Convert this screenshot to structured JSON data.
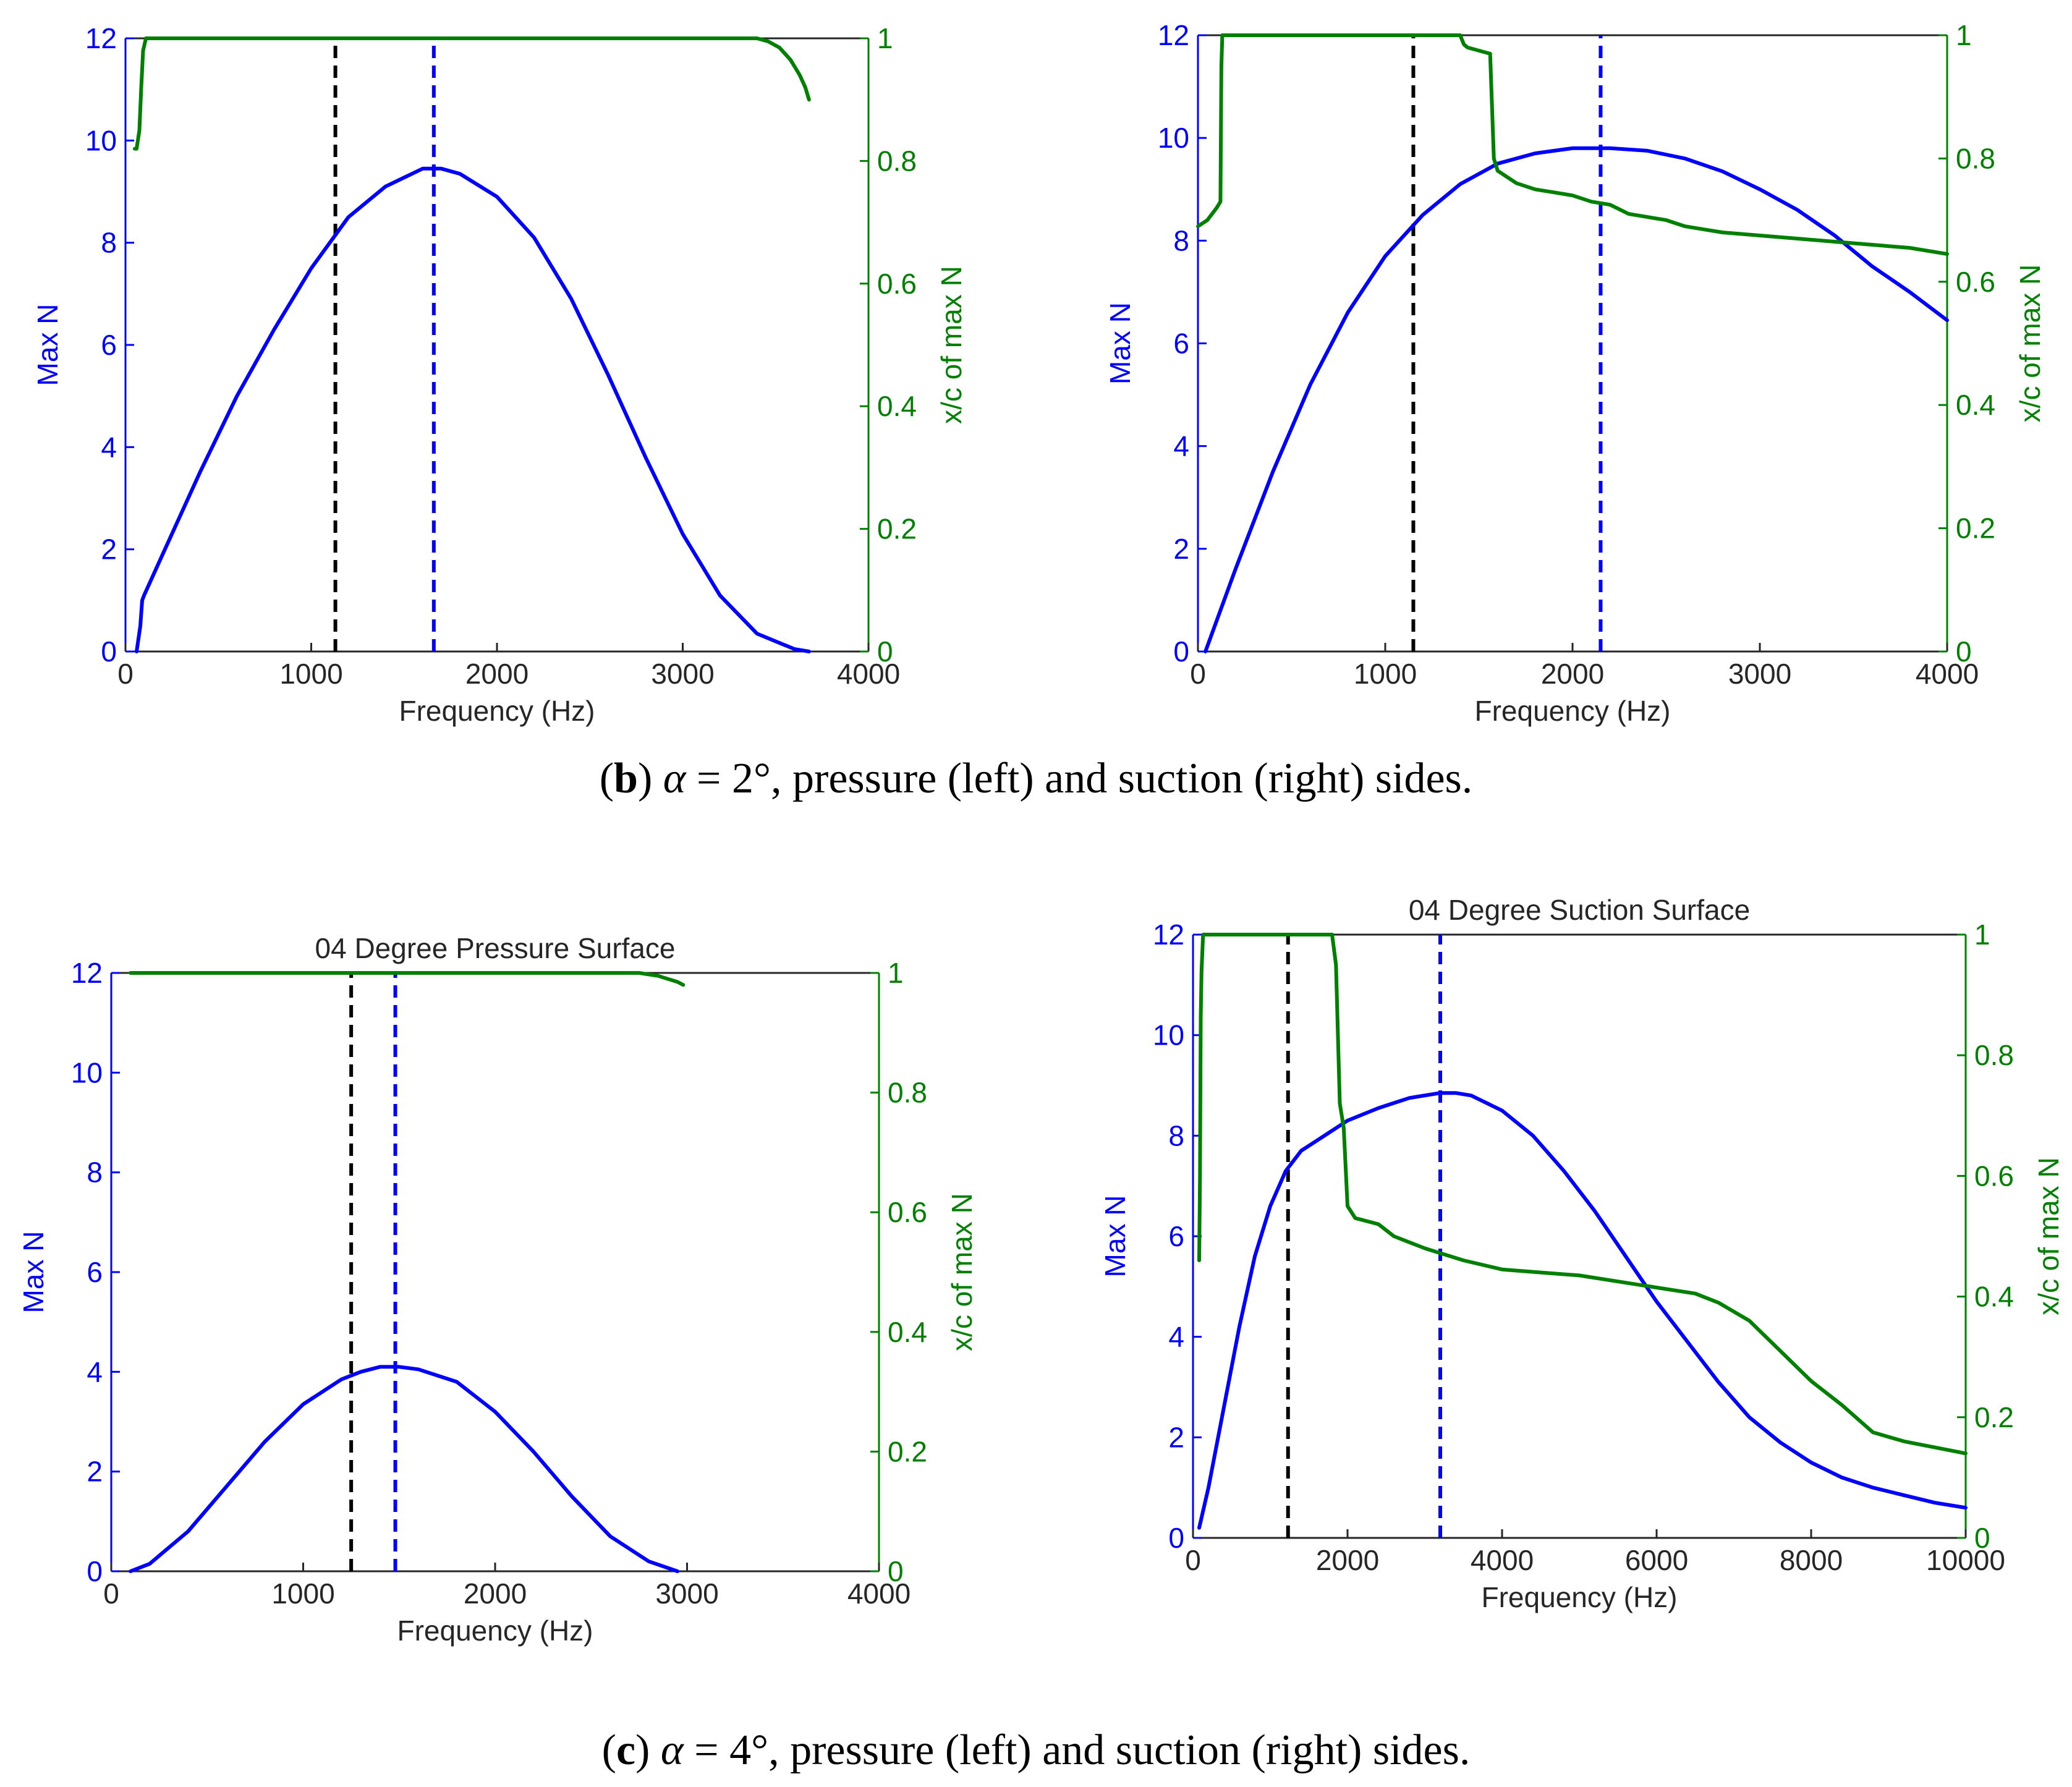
{
  "captions": {
    "b": {
      "open": "(",
      "letter": "b",
      "close": ")",
      "alpha": "α",
      "text": " = 2°, pressure (left) and suction (right) sides."
    },
    "c": {
      "open": "(",
      "letter": "c",
      "close": ")",
      "alpha": "α",
      "text": " = 4°, pressure (left) and suction (right) sides."
    }
  },
  "colors": {
    "left_axis": "#0000ff",
    "right_axis": "#008000",
    "marker": "#000000",
    "text": "#262626"
  },
  "chart_data": [
    {
      "id": "b-pressure",
      "type": "line",
      "title": "",
      "xlabel": "Frequency (Hz)",
      "ylabel": "Max N",
      "y2label": "x/c of max N",
      "xlim": [
        0,
        4000
      ],
      "ylim": [
        0,
        12
      ],
      "y2lim": [
        0,
        1
      ],
      "xticks": [
        0,
        1000,
        2000,
        3000,
        4000
      ],
      "yticks": [
        0,
        2,
        4,
        6,
        8,
        10,
        12
      ],
      "y2ticks": [
        0,
        0.2,
        0.4,
        0.6,
        0.8,
        1
      ],
      "y2ticklabels": [
        "0",
        "0.2",
        "0.4",
        "0.6",
        "0.8",
        "1"
      ],
      "series": [
        {
          "name": "Max N",
          "axis": "left",
          "color": "#0000ff",
          "x": [
            60,
            80,
            90,
            100,
            200,
            400,
            600,
            800,
            1000,
            1200,
            1400,
            1600,
            1700,
            1800,
            2000,
            2200,
            2400,
            2600,
            2800,
            3000,
            3200,
            3400,
            3600,
            3680
          ],
          "y": [
            0,
            0.5,
            1.0,
            1.1,
            1.9,
            3.5,
            5.0,
            6.3,
            7.5,
            8.5,
            9.1,
            9.45,
            9.45,
            9.35,
            8.9,
            8.1,
            6.9,
            5.4,
            3.8,
            2.3,
            1.1,
            0.35,
            0.05,
            0
          ]
        },
        {
          "name": "x/c of max N",
          "axis": "right",
          "color": "#008000",
          "x": [
            50,
            60,
            75,
            85,
            95,
            110,
            500,
            1000,
            2000,
            3000,
            3300,
            3400,
            3460,
            3520,
            3580,
            3630,
            3660,
            3680
          ],
          "y": [
            0.82,
            0.82,
            0.85,
            0.92,
            0.98,
            1.0,
            1.0,
            1.0,
            1.0,
            1.0,
            1.0,
            1.0,
            0.995,
            0.985,
            0.965,
            0.94,
            0.92,
            0.9
          ]
        }
      ],
      "markers": [
        {
          "name": "reference",
          "x": 1130,
          "color": "#000000"
        },
        {
          "name": "peak",
          "x": 1660,
          "color": "#0000ff"
        }
      ]
    },
    {
      "id": "b-suction",
      "type": "line",
      "title": "",
      "xlabel": "Frequency (Hz)",
      "ylabel": "Max N",
      "y2label": "x/c of max N",
      "xlim": [
        0,
        4000
      ],
      "ylim": [
        0,
        12
      ],
      "y2lim": [
        0,
        1
      ],
      "xticks": [
        0,
        1000,
        2000,
        3000,
        4000
      ],
      "yticks": [
        0,
        2,
        4,
        6,
        8,
        10,
        12
      ],
      "y2ticks": [
        0,
        0.2,
        0.4,
        0.6,
        0.8,
        1
      ],
      "y2ticklabels": [
        "0",
        "0.2",
        "0.4",
        "0.6",
        "0.8",
        "1"
      ],
      "series": [
        {
          "name": "Max N",
          "axis": "left",
          "color": "#0000ff",
          "x": [
            40,
            100,
            200,
            400,
            600,
            800,
            1000,
            1200,
            1400,
            1600,
            1800,
            2000,
            2200,
            2400,
            2600,
            2800,
            3000,
            3200,
            3400,
            3600,
            3800,
            4000
          ],
          "y": [
            0,
            0.6,
            1.6,
            3.5,
            5.2,
            6.6,
            7.7,
            8.5,
            9.1,
            9.5,
            9.7,
            9.8,
            9.8,
            9.75,
            9.6,
            9.35,
            9.0,
            8.6,
            8.1,
            7.5,
            7.0,
            6.45
          ]
        },
        {
          "name": "x/c of max N",
          "axis": "right",
          "color": "#008000",
          "x": [
            0,
            50,
            100,
            120,
            125,
            130,
            200,
            500,
            1000,
            1400,
            1420,
            1440,
            1560,
            1580,
            1600,
            1700,
            1800,
            1900,
            2000,
            2100,
            2200,
            2300,
            2400,
            2500,
            2600,
            2700,
            2800,
            3000,
            3200,
            3400,
            3600,
            3800,
            4000
          ],
          "y": [
            0.69,
            0.7,
            0.72,
            0.73,
            0.95,
            1.0,
            1.0,
            1.0,
            1.0,
            1.0,
            0.985,
            0.98,
            0.97,
            0.8,
            0.78,
            0.76,
            0.75,
            0.745,
            0.74,
            0.73,
            0.725,
            0.71,
            0.705,
            0.7,
            0.69,
            0.685,
            0.68,
            0.675,
            0.67,
            0.665,
            0.66,
            0.655,
            0.645
          ]
        }
      ],
      "markers": [
        {
          "name": "reference",
          "x": 1150,
          "color": "#000000"
        },
        {
          "name": "peak",
          "x": 2150,
          "color": "#0000ff"
        }
      ]
    },
    {
      "id": "c-pressure",
      "type": "line",
      "title": "04 Degree Pressure Surface",
      "xlabel": "Frequency (Hz)",
      "ylabel": "Max N",
      "y2label": "x/c of max N",
      "xlim": [
        0,
        4000
      ],
      "ylim": [
        0,
        12
      ],
      "y2lim": [
        0,
        1
      ],
      "xticks": [
        0,
        1000,
        2000,
        3000,
        4000
      ],
      "yticks": [
        0,
        2,
        4,
        6,
        8,
        10,
        12
      ],
      "y2ticks": [
        0,
        0.2,
        0.4,
        0.6,
        0.8,
        1
      ],
      "y2ticklabels": [
        "0",
        "0.2",
        "0.4",
        "0.6",
        "0.8",
        "1"
      ],
      "series": [
        {
          "name": "Max N",
          "axis": "left",
          "color": "#0000ff",
          "x": [
            100,
            200,
            400,
            600,
            800,
            1000,
            1200,
            1300,
            1400,
            1500,
            1600,
            1800,
            2000,
            2200,
            2400,
            2600,
            2800,
            2950
          ],
          "y": [
            0,
            0.15,
            0.8,
            1.7,
            2.6,
            3.35,
            3.85,
            4.0,
            4.1,
            4.1,
            4.05,
            3.8,
            3.2,
            2.4,
            1.5,
            0.7,
            0.2,
            0
          ]
        },
        {
          "name": "x/c of max N",
          "axis": "right",
          "color": "#008000",
          "x": [
            100,
            1000,
            2000,
            2750,
            2850,
            2900,
            2950,
            2980
          ],
          "y": [
            1.0,
            1.0,
            1.0,
            1.0,
            0.995,
            0.99,
            0.985,
            0.98
          ]
        }
      ],
      "markers": [
        {
          "name": "reference",
          "x": 1250,
          "color": "#000000"
        },
        {
          "name": "peak",
          "x": 1480,
          "color": "#0000ff"
        }
      ]
    },
    {
      "id": "c-suction",
      "type": "line",
      "title": "04 Degree Suction Surface",
      "xlabel": "Frequency (Hz)",
      "ylabel": "Max N",
      "y2label": "x/c of max N",
      "xlim": [
        0,
        10000
      ],
      "ylim": [
        0,
        12
      ],
      "y2lim": [
        0,
        1
      ],
      "xticks": [
        0,
        2000,
        4000,
        6000,
        8000,
        10000
      ],
      "yticks": [
        0,
        2,
        4,
        6,
        8,
        10,
        12
      ],
      "y2ticks": [
        0,
        0.2,
        0.4,
        0.6,
        0.8,
        1
      ],
      "y2ticklabels": [
        "0",
        "0.2",
        "0.4",
        "0.6",
        "0.8",
        "1"
      ],
      "series": [
        {
          "name": "Max N",
          "axis": "left",
          "color": "#0000ff",
          "x": [
            80,
            200,
            400,
            600,
            800,
            1000,
            1200,
            1400,
            1600,
            1800,
            2000,
            2400,
            2800,
            3200,
            3400,
            3600,
            4000,
            4400,
            4800,
            5200,
            5600,
            6000,
            6400,
            6800,
            7200,
            7600,
            8000,
            8400,
            8800,
            9200,
            9600,
            10000
          ],
          "y": [
            0.2,
            1.0,
            2.6,
            4.2,
            5.6,
            6.6,
            7.3,
            7.7,
            7.9,
            8.1,
            8.3,
            8.55,
            8.75,
            8.85,
            8.85,
            8.8,
            8.5,
            8.0,
            7.3,
            6.5,
            5.6,
            4.7,
            3.9,
            3.1,
            2.4,
            1.9,
            1.5,
            1.2,
            1.0,
            0.85,
            0.7,
            0.6
          ]
        },
        {
          "name": "x/c of max N",
          "axis": "right",
          "color": "#008000",
          "x": [
            80,
            90,
            100,
            110,
            130,
            150,
            170,
            600,
            1000,
            1500,
            1800,
            1850,
            1900,
            1950,
            2000,
            2050,
            2100,
            2400,
            2600,
            3000,
            3500,
            4000,
            4500,
            5000,
            5500,
            6000,
            6500,
            6800,
            7200,
            7600,
            8000,
            8400,
            8800,
            9200,
            9600,
            10000
          ],
          "y": [
            0.46,
            0.6,
            0.86,
            0.94,
            1.0,
            1.0,
            1.0,
            1.0,
            1.0,
            1.0,
            1.0,
            0.95,
            0.72,
            0.68,
            0.55,
            0.54,
            0.53,
            0.52,
            0.5,
            0.48,
            0.46,
            0.445,
            0.44,
            0.435,
            0.425,
            0.415,
            0.405,
            0.39,
            0.36,
            0.31,
            0.26,
            0.22,
            0.175,
            0.16,
            0.15,
            0.14
          ]
        }
      ],
      "markers": [
        {
          "name": "reference",
          "x": 1230,
          "color": "#000000"
        },
        {
          "name": "peak",
          "x": 3200,
          "color": "#0000ff"
        }
      ]
    }
  ]
}
